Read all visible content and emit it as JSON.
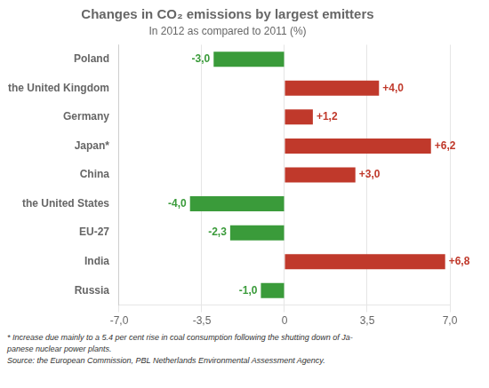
{
  "chart_data": {
    "type": "bar",
    "orientation": "horizontal",
    "title": "Changes in CO₂ emissions by largest emitters",
    "subtitle": "In 2012 as compared to 2011 (%)",
    "categories": [
      "Russia",
      "India",
      "EU-27",
      "the United States",
      "China",
      "Japan*",
      "Germany",
      "the United Kingdom",
      "Poland"
    ],
    "values": [
      -1.0,
      6.8,
      -2.3,
      -4.0,
      3.0,
      6.2,
      1.2,
      4.0,
      -3.0
    ],
    "value_labels": [
      "-1,0",
      "+6,8",
      "-2,3",
      "-4,0",
      "+3,0",
      "+6,2",
      "+1,2",
      "+4,0",
      "-3,0"
    ],
    "colors": [
      "#3a9b3a",
      "#c0392b",
      "#3a9b3a",
      "#3a9b3a",
      "#c0392b",
      "#c0392b",
      "#c0392b",
      "#c0392b",
      "#3a9b3a"
    ],
    "xlim": [
      -7.0,
      7.0
    ],
    "xticks": [
      {
        "value": -7.0,
        "label": "-7,0"
      },
      {
        "value": -3.5,
        "label": "-3,5"
      },
      0,
      {
        "value": 3.5,
        "label": "3,5"
      },
      {
        "value": 7.0,
        "label": "7,0"
      }
    ],
    "grid": true,
    "data_labels": true,
    "annotations": [
      "* Increase due mainly to a 5.4 per cent rise in coal consumption following the shutting down of Ja-",
      "panese nuclear power plants.",
      "Source: the European Commission, PBL Netherlands Environmental Assessment Agency."
    ]
  }
}
